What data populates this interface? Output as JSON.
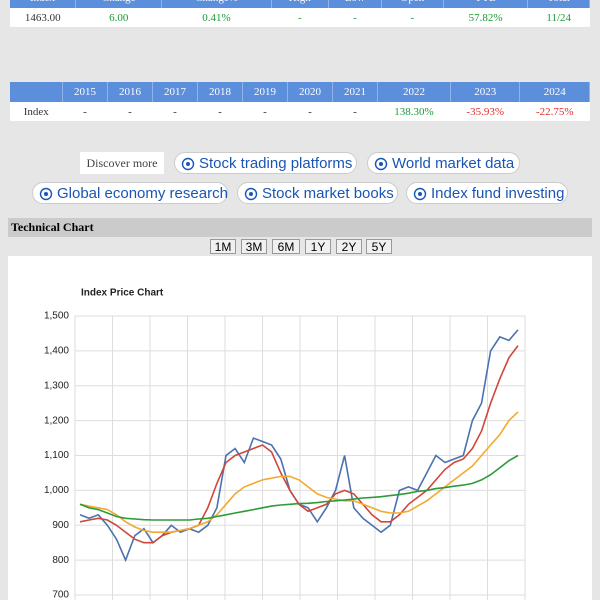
{
  "quote_table": {
    "headers": [
      "Index",
      "Change",
      "Change%",
      "High",
      "Low",
      "Open",
      "YTD",
      "Total"
    ],
    "row": [
      "1463.00",
      "6.00",
      "0.41%",
      "-",
      "-",
      "-",
      "57.82%",
      "11/24"
    ]
  },
  "yearly_table": {
    "headers": [
      "2015",
      "2016",
      "2017",
      "2018",
      "2019",
      "2020",
      "2021",
      "2022",
      "2023",
      "2024"
    ],
    "row_label": "Index",
    "row": [
      "-",
      "-",
      "-",
      "-",
      "-",
      "-",
      "-",
      "138.30%",
      "-35.93%",
      "-22.75%"
    ]
  },
  "discover": {
    "label": "Discover more",
    "links": [
      "Stock trading platforms",
      "World market data",
      "Global economy research",
      "Stock market books",
      "Index fund investing"
    ]
  },
  "section_title": "Technical Chart",
  "ranges": [
    "1M",
    "3M",
    "6M",
    "1Y",
    "2Y",
    "5Y"
  ],
  "chart_data": {
    "type": "line",
    "title": "Index Price Chart",
    "ylim": [
      700,
      1500
    ],
    "yticks": [
      {
        "value": 1500,
        "label": "1,500"
      },
      {
        "value": 1400,
        "label": "1,400"
      },
      {
        "value": 1300,
        "label": "1,300"
      },
      {
        "value": 1200,
        "label": "1,200"
      },
      {
        "value": 1100,
        "label": "1,100"
      },
      {
        "value": 1000,
        "label": "1,000"
      },
      900,
      800,
      700
    ],
    "grid": true,
    "series": [
      {
        "color": "#4a72b0",
        "values": [
          930,
          920,
          930,
          900,
          860,
          800,
          870,
          890,
          850,
          870,
          900,
          880,
          890,
          880,
          900,
          950,
          1100,
          1120,
          1080,
          1150,
          1140,
          1130,
          1090,
          1000,
          960,
          950,
          910,
          950,
          1000,
          1100,
          950,
          920,
          900,
          880,
          900,
          1000,
          1010,
          1000,
          1050,
          1100,
          1080,
          1090,
          1100,
          1200,
          1250,
          1400,
          1440,
          1430,
          1460
        ]
      },
      {
        "color": "#d0473a",
        "values": [
          910,
          915,
          920,
          915,
          900,
          880,
          860,
          850,
          850,
          870,
          880,
          885,
          890,
          900,
          950,
          1020,
          1080,
          1100,
          1110,
          1120,
          1130,
          1110,
          1050,
          1000,
          960,
          940,
          950,
          960,
          990,
          1000,
          990,
          960,
          930,
          910,
          910,
          930,
          960,
          980,
          1000,
          1030,
          1060,
          1080,
          1090,
          1120,
          1170,
          1250,
          1320,
          1380,
          1415
        ]
      },
      {
        "color": "#f2a92e",
        "values": [
          960,
          955,
          950,
          945,
          930,
          910,
          895,
          885,
          880,
          880,
          880,
          885,
          890,
          900,
          910,
          930,
          960,
          990,
          1010,
          1020,
          1030,
          1035,
          1040,
          1040,
          1030,
          1010,
          990,
          980,
          975,
          970,
          970,
          960,
          950,
          940,
          935,
          935,
          940,
          955,
          970,
          990,
          1010,
          1030,
          1050,
          1070,
          1100,
          1130,
          1160,
          1200,
          1225
        ]
      },
      {
        "color": "#2e9a3a",
        "values": [
          960,
          950,
          945,
          935,
          925,
          920,
          918,
          916,
          915,
          915,
          915,
          915,
          915,
          918,
          920,
          925,
          930,
          935,
          940,
          945,
          950,
          955,
          958,
          960,
          962,
          963,
          965,
          968,
          970,
          972,
          975,
          978,
          980,
          982,
          985,
          988,
          992,
          997,
          1000,
          1005,
          1008,
          1012,
          1015,
          1020,
          1030,
          1045,
          1065,
          1085,
          1100
        ]
      }
    ]
  }
}
